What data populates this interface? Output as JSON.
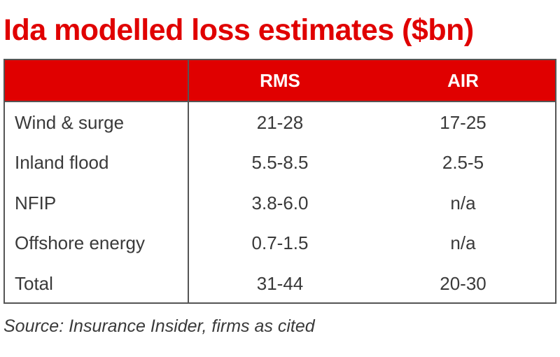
{
  "title": "Ida modelled loss estimates ($bn)",
  "source": "Source: Insurance Insider, firms as cited",
  "colors": {
    "accent": "#e00000",
    "border": "#555555",
    "text": "#3a3a3a"
  },
  "chart_data": {
    "type": "table",
    "title": "Ida modelled loss estimates ($bn)",
    "columns": [
      "",
      "RMS",
      "AIR"
    ],
    "rows": [
      {
        "label": "Wind & surge",
        "rms": "21-28",
        "air": "17-25"
      },
      {
        "label": "Inland flood",
        "rms": "5.5-8.5",
        "air": "2.5-5"
      },
      {
        "label": "NFIP",
        "rms": "3.8-6.0",
        "air": "n/a"
      },
      {
        "label": "Offshore energy",
        "rms": "0.7-1.5",
        "air": "n/a"
      },
      {
        "label": "Total",
        "rms": "31-44",
        "air": "20-30"
      }
    ]
  }
}
